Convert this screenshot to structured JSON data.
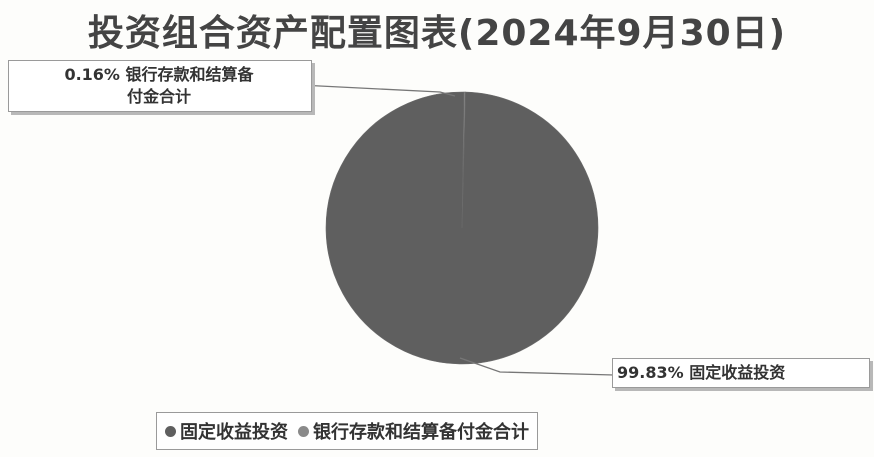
{
  "title": "投资组合资产配置图表(2024年9月30日)",
  "colors": {
    "fixed_income": "#5f5f5f",
    "bank_deposit": "#8a8a8a",
    "leader_line": "#777777"
  },
  "chart_data": {
    "type": "pie",
    "title": "投资组合资产配置图表(2024年9月30日)",
    "slices": [
      {
        "label": "固定收益投资",
        "value": 99.83,
        "display": "99.83%",
        "color": "#5f5f5f"
      },
      {
        "label": "银行存款和结算备付金合计",
        "value": 0.16,
        "display": "0.16%",
        "color": "#8a8a8a"
      }
    ],
    "data_labels": [
      {
        "line1": "0.16% 银行存款和结算备",
        "line2": "付金合计"
      },
      {
        "line1": "99.83% 固定收益投资"
      }
    ],
    "legend": {
      "placement": "bottom",
      "items": [
        "固定收益投资",
        "银行存款和结算备付金合计"
      ]
    }
  }
}
